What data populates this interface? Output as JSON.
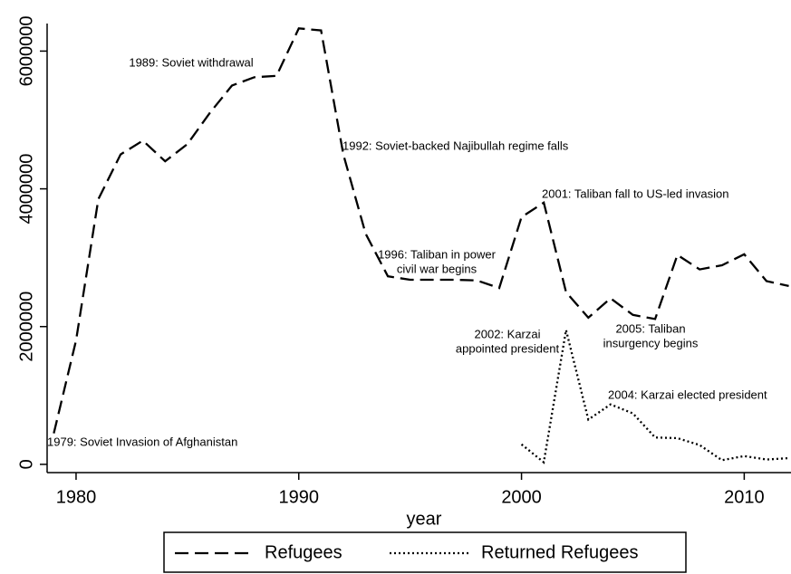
{
  "chart_data": {
    "type": "line",
    "xlabel": "year",
    "xlim": [
      1978.7,
      2012.1
    ],
    "xticks": [
      1980,
      1990,
      2000,
      2010
    ],
    "ylim": [
      -120000,
      6400000
    ],
    "yticks": [
      0,
      2000000,
      4000000,
      6000000
    ],
    "series": [
      {
        "name": "Refugees",
        "color": "#000000",
        "style": "dashed",
        "x": [
          1979,
          1980,
          1981,
          1982,
          1983,
          1984,
          1985,
          1986,
          1987,
          1988,
          1989,
          1990,
          1991,
          1992,
          1993,
          1994,
          1995,
          1996,
          1997,
          1998,
          1999,
          2000,
          2001,
          2002,
          2003,
          2004,
          2005,
          2006,
          2007,
          2008,
          2009,
          2010,
          2011,
          2012
        ],
        "values": [
          450000,
          1800000,
          3850000,
          4500000,
          4700000,
          4400000,
          4650000,
          5100000,
          5500000,
          5620000,
          5640000,
          6330000,
          6300000,
          4500000,
          3350000,
          2730000,
          2680000,
          2680000,
          2680000,
          2670000,
          2560000,
          3590000,
          3800000,
          2500000,
          2130000,
          2410000,
          2170000,
          2110000,
          3040000,
          2830000,
          2890000,
          3050000,
          2660000,
          2590000
        ]
      },
      {
        "name": "Returned Refugees",
        "color": "#000000",
        "style": "dotted",
        "x": [
          2000,
          2001,
          2002,
          2003,
          2004,
          2005,
          2006,
          2007,
          2008,
          2009,
          2010,
          2011,
          2012
        ],
        "values": [
          290000,
          30000,
          1950000,
          650000,
          870000,
          740000,
          390000,
          380000,
          280000,
          60000,
          120000,
          70000,
          90000
        ]
      }
    ],
    "annotations": [
      [
        "1979: Soviet Invasion of Afghanistan"
      ],
      [
        "1989: Soviet withdrawal"
      ],
      [
        "1992: Soviet-backed Najibullah regime falls"
      ],
      [
        "1996: Taliban in power",
        "civil war begins"
      ],
      [
        "2001: Taliban fall to US-led invasion"
      ],
      [
        "2002: Karzai",
        "appointed president"
      ],
      [
        "2005: Taliban",
        "insurgency begins"
      ],
      [
        "2004: Karzai elected president"
      ]
    ]
  }
}
